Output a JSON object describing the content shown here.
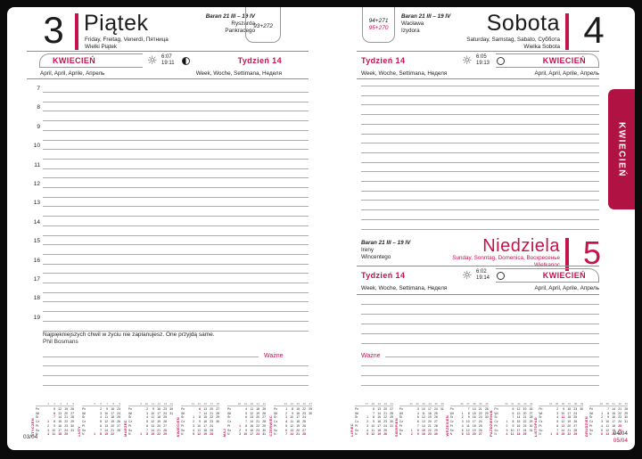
{
  "colors": {
    "accent": "#c5134b",
    "tab": "#b01243",
    "line": "#ababab"
  },
  "month_tab": {
    "label": "KWIECIEŃ"
  },
  "friday": {
    "day_number": "3",
    "day_name": "Piątek",
    "day_langs": "Friday, Freitag, Venerdì, Пятница",
    "holiday": "Wielki Piątek",
    "zodiac": "Baran 21 III – 19 IV",
    "name_day_1": "Ryszarda",
    "name_day_2": "Pankracego",
    "day_of_year": "93+272",
    "month": "KWIECIEŃ",
    "month_langs": "April, April, Aprile, Апрель",
    "sunrise": "6:07",
    "sunset": "19:11",
    "week": "Tydzień 14",
    "week_langs": "Week, Woche, Settimana, Неделя",
    "hours": [
      "7",
      "8",
      "9",
      "10",
      "11",
      "12",
      "13",
      "14",
      "15",
      "16",
      "17",
      "18",
      "19"
    ],
    "quote": "Najpiękniejszych chwil w życiu nie zaplanujesz. One przyjdą same.",
    "quote_author": "Phil Bosmans",
    "important": "Ważne",
    "page_number": "03/04"
  },
  "saturday": {
    "day_number": "4",
    "day_name": "Sobota",
    "day_langs": "Saturday, Samstag, Sabato, Суббота",
    "holiday": "Wielka Sobota",
    "zodiac": "Baran 21 III – 19 IV",
    "name_day_1": "Wacława",
    "name_day_2": "Izydora",
    "day_of_year": "94+271",
    "day_of_year_2": "95+270",
    "month": "KWIECIEŃ",
    "month_langs": "April, April, Aprile, Апрель",
    "sunrise": "6:05",
    "sunset": "19:13",
    "week": "Tydzień 14",
    "week_langs": "Week, Woche, Settimana, Неделя"
  },
  "sunday": {
    "day_number": "5",
    "day_name": "Niedziela",
    "day_langs": "Sunday, Sonntag, Domenica, Воскресенье",
    "holiday": "Wielkanoc",
    "zodiac": "Baran 21 III – 19 IV",
    "name_day_1": "Ireny",
    "name_day_2": "Wincentego",
    "month": "KWIECIEŃ",
    "month_langs": "April, April, Aprile, Апрель",
    "sunrise": "6:02",
    "sunset": "19:14",
    "week": "Tydzień 14",
    "week_langs": "Week, Woche, Settimana, Неделя",
    "important": "Ważne",
    "page_number": "04/04",
    "page_number_2": "05/04"
  },
  "mini_calendars": {
    "day_labels": [
      "Pn",
      "Wt",
      "Śr",
      "Cz",
      "Pt",
      "So",
      "N"
    ],
    "months": [
      {
        "name": "STYCZEŃ",
        "weeks": [
          1,
          2,
          3,
          4,
          5
        ],
        "red": [
          1,
          6
        ],
        "rows": [
          [
            "",
            "5",
            "12",
            "19",
            "26"
          ],
          [
            "",
            "6",
            "13",
            "20",
            "27"
          ],
          [
            "",
            "7",
            "14",
            "21",
            "28"
          ],
          [
            "1",
            "8",
            "15",
            "22",
            "29"
          ],
          [
            "2",
            "9",
            "16",
            "23",
            "30"
          ],
          [
            "3",
            "10",
            "17",
            "24",
            "31"
          ],
          [
            "4",
            "11",
            "18",
            "25",
            ""
          ]
        ]
      },
      {
        "name": "LUTY",
        "weeks": [
          5,
          6,
          7,
          8,
          9
        ],
        "red": [],
        "rows": [
          [
            "",
            "2",
            "9",
            "16",
            "23"
          ],
          [
            "",
            "3",
            "10",
            "17",
            "24"
          ],
          [
            "",
            "4",
            "11",
            "18",
            "25"
          ],
          [
            "",
            "5",
            "12",
            "19",
            "26"
          ],
          [
            "",
            "6",
            "13",
            "20",
            "27"
          ],
          [
            "",
            "7",
            "14",
            "21",
            "28"
          ],
          [
            "1",
            "8",
            "15",
            "22",
            ""
          ]
        ]
      },
      {
        "name": "MARZEC",
        "weeks": [
          9,
          10,
          11,
          12,
          13,
          14
        ],
        "red": [],
        "rows": [
          [
            "",
            "2",
            "9",
            "16",
            "23",
            "30"
          ],
          [
            "",
            "3",
            "10",
            "17",
            "24",
            "31"
          ],
          [
            "",
            "4",
            "11",
            "18",
            "25",
            ""
          ],
          [
            "",
            "5",
            "12",
            "19",
            "26",
            ""
          ],
          [
            "",
            "6",
            "13",
            "20",
            "27",
            ""
          ],
          [
            "",
            "7",
            "14",
            "21",
            "28",
            ""
          ],
          [
            "1",
            "8",
            "15",
            "22",
            "29",
            ""
          ]
        ]
      },
      {
        "name": "KWIECIEŃ",
        "weeks": [
          14,
          15,
          16,
          17,
          18
        ],
        "red": [
          5,
          6
        ],
        "rows": [
          [
            "",
            "6",
            "13",
            "20",
            "27"
          ],
          [
            "",
            "7",
            "14",
            "21",
            "28"
          ],
          [
            "1",
            "8",
            "15",
            "22",
            "29"
          ],
          [
            "2",
            "9",
            "16",
            "23",
            "30"
          ],
          [
            "3",
            "10",
            "17",
            "24",
            ""
          ],
          [
            "4",
            "11",
            "18",
            "25",
            ""
          ],
          [
            "5",
            "12",
            "19",
            "26",
            ""
          ]
        ]
      },
      {
        "name": "MAJ",
        "weeks": [
          18,
          19,
          20,
          21,
          22
        ],
        "red": [
          1,
          3,
          24
        ],
        "rows": [
          [
            "",
            "4",
            "11",
            "18",
            "25"
          ],
          [
            "",
            "5",
            "12",
            "19",
            "26"
          ],
          [
            "",
            "6",
            "13",
            "20",
            "27"
          ],
          [
            "",
            "7",
            "14",
            "21",
            "28"
          ],
          [
            "1",
            "8",
            "15",
            "22",
            "29"
          ],
          [
            "2",
            "9",
            "16",
            "23",
            "30"
          ],
          [
            "3",
            "10",
            "17",
            "24",
            "31"
          ]
        ]
      },
      {
        "name": "CZERWIEC",
        "weeks": [
          23,
          24,
          25,
          26,
          27
        ],
        "red": [
          4
        ],
        "rows": [
          [
            "1",
            "8",
            "15",
            "22",
            "29"
          ],
          [
            "2",
            "9",
            "16",
            "23",
            "30"
          ],
          [
            "3",
            "10",
            "17",
            "24",
            ""
          ],
          [
            "4",
            "11",
            "18",
            "25",
            ""
          ],
          [
            "5",
            "12",
            "19",
            "26",
            ""
          ],
          [
            "6",
            "13",
            "20",
            "27",
            ""
          ],
          [
            "7",
            "14",
            "21",
            "28",
            ""
          ]
        ]
      },
      {
        "name": "LIPIEC",
        "weeks": [
          27,
          28,
          29,
          30,
          31
        ],
        "red": [],
        "rows": [
          [
            "",
            "6",
            "13",
            "20",
            "27"
          ],
          [
            "",
            "7",
            "14",
            "21",
            "28"
          ],
          [
            "1",
            "8",
            "15",
            "22",
            "29"
          ],
          [
            "2",
            "9",
            "16",
            "23",
            "30"
          ],
          [
            "3",
            "10",
            "17",
            "24",
            "31"
          ],
          [
            "4",
            "11",
            "18",
            "25",
            ""
          ],
          [
            "5",
            "12",
            "19",
            "26",
            ""
          ]
        ]
      },
      {
        "name": "SIERPIEŃ",
        "weeks": [
          31,
          32,
          33,
          34,
          35,
          36
        ],
        "red": [
          15
        ],
        "rows": [
          [
            "",
            "3",
            "10",
            "17",
            "24",
            "31"
          ],
          [
            "",
            "4",
            "11",
            "18",
            "25",
            ""
          ],
          [
            "",
            "5",
            "12",
            "19",
            "26",
            ""
          ],
          [
            "",
            "6",
            "13",
            "20",
            "27",
            ""
          ],
          [
            "",
            "7",
            "14",
            "21",
            "28",
            ""
          ],
          [
            "1",
            "8",
            "15",
            "22",
            "29",
            ""
          ],
          [
            "2",
            "9",
            "16",
            "23",
            "30",
            ""
          ]
        ]
      },
      {
        "name": "WRZESIEŃ",
        "weeks": [
          36,
          37,
          38,
          39,
          40
        ],
        "red": [],
        "rows": [
          [
            "",
            "7",
            "14",
            "21",
            "28"
          ],
          [
            "1",
            "8",
            "15",
            "22",
            "29"
          ],
          [
            "2",
            "9",
            "16",
            "23",
            "30"
          ],
          [
            "3",
            "10",
            "17",
            "24",
            ""
          ],
          [
            "4",
            "11",
            "18",
            "25",
            ""
          ],
          [
            "5",
            "12",
            "19",
            "26",
            ""
          ],
          [
            "6",
            "13",
            "20",
            "27",
            ""
          ]
        ]
      },
      {
        "name": "PAŹDZIERNIK",
        "weeks": [
          40,
          41,
          42,
          43,
          44
        ],
        "red": [],
        "rows": [
          [
            "",
            "5",
            "12",
            "19",
            "26"
          ],
          [
            "",
            "6",
            "13",
            "20",
            "27"
          ],
          [
            "",
            "7",
            "14",
            "21",
            "28"
          ],
          [
            "1",
            "8",
            "15",
            "22",
            "29"
          ],
          [
            "2",
            "9",
            "16",
            "23",
            "30"
          ],
          [
            "3",
            "10",
            "17",
            "24",
            "31"
          ],
          [
            "4",
            "11",
            "18",
            "25",
            ""
          ]
        ]
      },
      {
        "name": "LISTOPAD",
        "weeks": [
          44,
          45,
          46,
          47,
          48,
          49
        ],
        "red": [
          1,
          11
        ],
        "rows": [
          [
            "",
            "2",
            "9",
            "16",
            "23",
            "30"
          ],
          [
            "",
            "3",
            "10",
            "17",
            "24",
            ""
          ],
          [
            "",
            "4",
            "11",
            "18",
            "25",
            ""
          ],
          [
            "",
            "5",
            "12",
            "19",
            "26",
            ""
          ],
          [
            "",
            "6",
            "13",
            "20",
            "27",
            ""
          ],
          [
            "",
            "7",
            "14",
            "21",
            "28",
            ""
          ],
          [
            "1",
            "8",
            "15",
            "22",
            "29",
            ""
          ]
        ]
      },
      {
        "name": "GRUDZIEŃ",
        "weeks": [
          49,
          50,
          51,
          52,
          53
        ],
        "red": [
          25,
          26
        ],
        "rows": [
          [
            "",
            "7",
            "14",
            "21",
            "28"
          ],
          [
            "1",
            "8",
            "15",
            "22",
            "29"
          ],
          [
            "2",
            "9",
            "16",
            "23",
            "30"
          ],
          [
            "3",
            "10",
            "17",
            "24",
            "31"
          ],
          [
            "4",
            "11",
            "18",
            "25",
            ""
          ],
          [
            "5",
            "12",
            "19",
            "26",
            ""
          ],
          [
            "6",
            "13",
            "20",
            "27",
            ""
          ]
        ]
      }
    ]
  }
}
